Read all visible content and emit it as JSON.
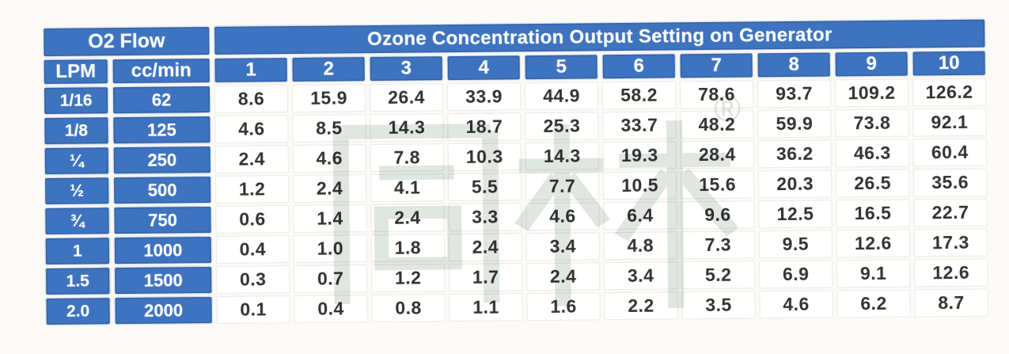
{
  "chart_data": {
    "type": "table",
    "title": "Ozone Concentration Output Setting on Generator",
    "column_group_left": "O2 Flow",
    "left_columns": [
      "LPM",
      "cc/min"
    ],
    "setting_levels": [
      "1",
      "2",
      "3",
      "4",
      "5",
      "6",
      "7",
      "8",
      "9",
      "10"
    ],
    "rows": [
      {
        "lpm": "1/16",
        "cc_min": "62",
        "values": [
          "8.6",
          "15.9",
          "26.4",
          "33.9",
          "44.9",
          "58.2",
          "78.6",
          "93.7",
          "109.2",
          "126.2"
        ]
      },
      {
        "lpm": "1/8",
        "cc_min": "125",
        "values": [
          "4.6",
          "8.5",
          "14.3",
          "18.7",
          "25.3",
          "33.7",
          "48.2",
          "59.9",
          "73.8",
          "92.1"
        ]
      },
      {
        "lpm": "¼",
        "cc_min": "250",
        "values": [
          "2.4",
          "4.6",
          "7.8",
          "10.3",
          "14.3",
          "19.3",
          "28.4",
          "36.2",
          "46.3",
          "60.4"
        ]
      },
      {
        "lpm": "½",
        "cc_min": "500",
        "values": [
          "1.2",
          "2.4",
          "4.1",
          "5.5",
          "7.7",
          "10.5",
          "15.6",
          "20.3",
          "26.5",
          "35.6"
        ]
      },
      {
        "lpm": "¾",
        "cc_min": "750",
        "values": [
          "0.6",
          "1.4",
          "2.4",
          "3.3",
          "4.6",
          "6.4",
          "9.6",
          "12.5",
          "16.5",
          "22.7"
        ]
      },
      {
        "lpm": "1",
        "cc_min": "1000",
        "values": [
          "0.4",
          "1.0",
          "1.8",
          "2.4",
          "3.4",
          "4.8",
          "7.3",
          "9.5",
          "12.6",
          "17.3"
        ]
      },
      {
        "lpm": "1.5",
        "cc_min": "1500",
        "values": [
          "0.3",
          "0.7",
          "1.2",
          "1.7",
          "2.4",
          "3.4",
          "5.2",
          "6.9",
          "9.1",
          "12.6"
        ]
      },
      {
        "lpm": "2.0",
        "cc_min": "2000",
        "values": [
          "0.1",
          "0.4",
          "0.8",
          "1.1",
          "1.6",
          "2.2",
          "3.5",
          "4.6",
          "6.2",
          "8.7"
        ]
      }
    ]
  },
  "watermark": {
    "text": "同林",
    "registered_mark": "®"
  },
  "colors": {
    "header_blue": "#3e73c0",
    "value_text": "#333333",
    "watermark": "#e0e6e0",
    "page_background": "#fbfaf7"
  }
}
